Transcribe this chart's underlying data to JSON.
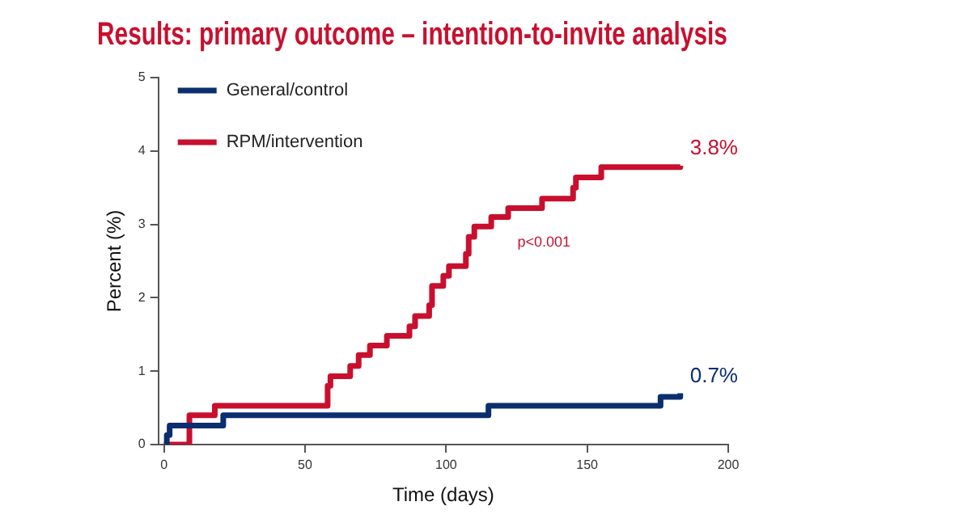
{
  "chart_data": {
    "type": "step",
    "title": "Results: primary outcome – intention-to-invite analysis",
    "xlabel": "Time (days)",
    "ylabel": "Percent (%)",
    "xlim": [
      -2,
      200
    ],
    "xticks": [
      0,
      50,
      100,
      150,
      200
    ],
    "ylim": [
      0,
      5
    ],
    "yticks": [
      0,
      1,
      2,
      3,
      4,
      5
    ],
    "grid": false,
    "legend": "top left",
    "marker": "none",
    "line_style": "solid",
    "series": [
      {
        "name": "General/control",
        "color": "#0b2e6f",
        "x": [
          0,
          1,
          2,
          21,
          115,
          176,
          183
        ],
        "values": [
          0,
          0.13,
          0.26,
          0.4,
          0.53,
          0.65,
          0.7
        ]
      },
      {
        "name": "RPM/intervention",
        "color": "#c8102e",
        "x": [
          0,
          9,
          18,
          58,
          59,
          66,
          69,
          73,
          79,
          87,
          89,
          94,
          95,
          99,
          101,
          107,
          108,
          110,
          116,
          122,
          134,
          145,
          146,
          155,
          183
        ],
        "values": [
          0,
          0.4,
          0.53,
          0.8,
          0.93,
          1.07,
          1.22,
          1.35,
          1.48,
          1.61,
          1.75,
          1.9,
          2.16,
          2.3,
          2.43,
          2.6,
          2.83,
          2.97,
          3.1,
          3.22,
          3.35,
          3.5,
          3.64,
          3.78,
          3.8
        ]
      }
    ],
    "annotations": [
      {
        "text": "3.8%",
        "x": 183,
        "y": 3.8
      },
      {
        "text": "0.7%",
        "x": 183,
        "y": 0.7
      },
      "p<0.001"
    ]
  }
}
